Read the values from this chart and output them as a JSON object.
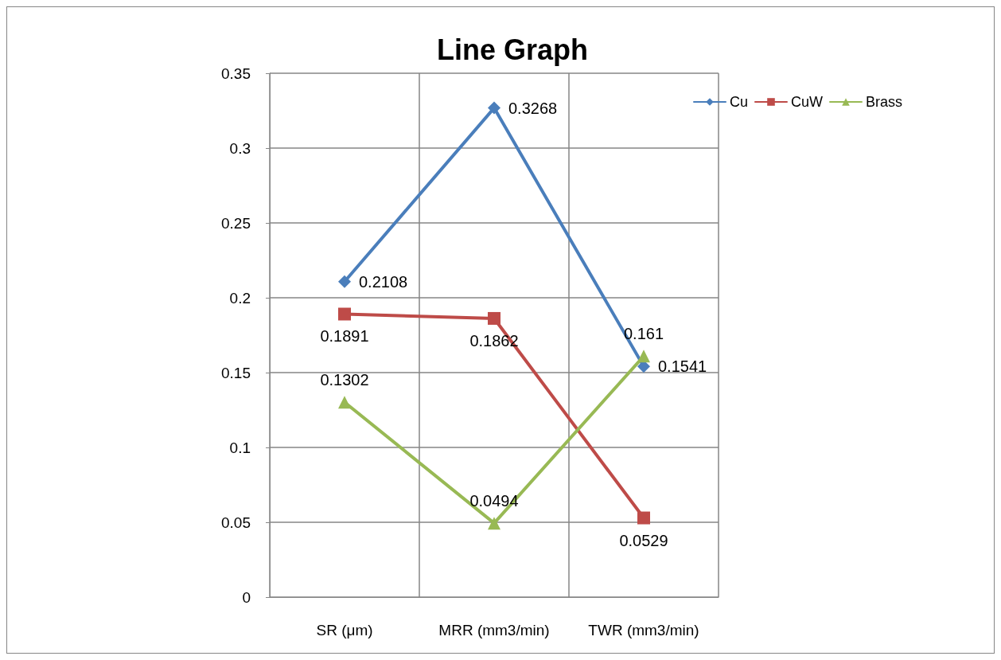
{
  "chart_data": {
    "type": "line",
    "title": "Line Graph",
    "categories": [
      "SR (μm)",
      "MRR (mm3/min)",
      "TWR (mm3/min)"
    ],
    "series": [
      {
        "name": "Cu",
        "color": "#4a7ebb",
        "marker": "diamond",
        "values": [
          0.2108,
          0.3268,
          0.1541
        ]
      },
      {
        "name": "CuW",
        "color": "#be4b48",
        "marker": "square",
        "values": [
          0.1891,
          0.1862,
          0.0529
        ]
      },
      {
        "name": "Brass",
        "color": "#98b954",
        "marker": "triangle",
        "values": [
          0.1302,
          0.0494,
          0.161
        ]
      }
    ],
    "ylim": [
      0,
      0.35
    ],
    "yticks": [
      0,
      0.05,
      0.1,
      0.15,
      0.2,
      0.25,
      0.3,
      0.35
    ],
    "grid": true,
    "legend": "top right",
    "data_labels": true
  }
}
